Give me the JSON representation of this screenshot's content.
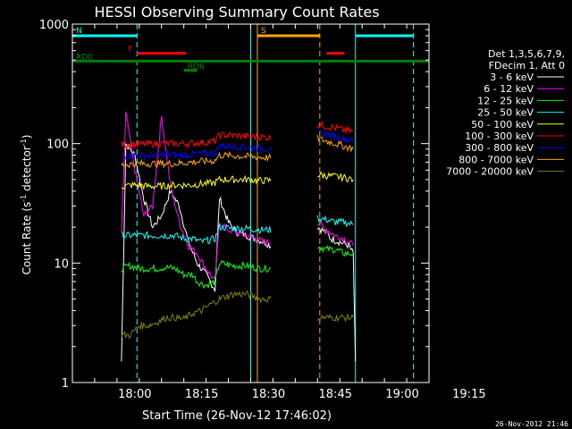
{
  "chart_data": {
    "type": "line",
    "title": "HESSI Observing Summary Count Rates",
    "xlabel": "Start Time (26-Nov-12 17:46:02)",
    "ylabel_main": "Count Rate (s",
    "ylabel_sup": "-1",
    "ylabel_mid": " detector",
    "ylabel_end": ")",
    "y_scale": "log",
    "ylim": [
      1,
      1000
    ],
    "xlim_minutes": [
      0,
      80
    ],
    "x_ticks": [
      {
        "minute": 14,
        "label": "18:00"
      },
      {
        "minute": 29,
        "label": "18:15"
      },
      {
        "minute": 44,
        "label": "18:30"
      },
      {
        "minute": 59,
        "label": "18:45"
      },
      {
        "minute": 74,
        "label": "19:00"
      },
      {
        "minute": 89,
        "label": "19:15"
      }
    ],
    "y_ticks": [
      {
        "value": 1,
        "label": "1"
      },
      {
        "value": 10,
        "label": "10"
      },
      {
        "value": 100,
        "label": "100"
      },
      {
        "value": 1000,
        "label": "1000"
      }
    ],
    "legend": {
      "placement": "right",
      "header": [
        "Det 1,3,5,6,7,9,",
        "FDecim 1, Att 0"
      ]
    },
    "series": [
      {
        "name": "3 - 6 keV",
        "color": "#ffffff",
        "values": [
          [
            11,
            1.5
          ],
          [
            12,
            100
          ],
          [
            14,
            80
          ],
          [
            16,
            35
          ],
          [
            18,
            20
          ],
          [
            20,
            25
          ],
          [
            22,
            40
          ],
          [
            24,
            30
          ],
          [
            26,
            15
          ],
          [
            28,
            10
          ],
          [
            30,
            8
          ],
          [
            32,
            6
          ],
          [
            33,
            35
          ],
          [
            35,
            22
          ],
          [
            37,
            18
          ],
          [
            39,
            17
          ],
          [
            41,
            16
          ],
          [
            43,
            15
          ],
          [
            44.5,
            14
          ],
          [
            55,
            20
          ],
          [
            57,
            18
          ],
          [
            58,
            16
          ],
          [
            60,
            15
          ],
          [
            62,
            14
          ],
          [
            63,
            12
          ],
          [
            63.5,
            1.5
          ]
        ]
      },
      {
        "name": "6 - 12 keV",
        "color": "#ff00ff",
        "values": [
          [
            11,
            17
          ],
          [
            12,
            180
          ],
          [
            14,
            60
          ],
          [
            16,
            25
          ],
          [
            18,
            30
          ],
          [
            20,
            170
          ],
          [
            22,
            45
          ],
          [
            24,
            22
          ],
          [
            26,
            14
          ],
          [
            28,
            12
          ],
          [
            30,
            9
          ],
          [
            32,
            7
          ],
          [
            33,
            22
          ],
          [
            35,
            19
          ],
          [
            37,
            18
          ],
          [
            39,
            17
          ],
          [
            41,
            16
          ],
          [
            43,
            15
          ],
          [
            44.5,
            15
          ],
          [
            55,
            22
          ],
          [
            57,
            19
          ],
          [
            59,
            17
          ],
          [
            61,
            16
          ],
          [
            63,
            14
          ]
        ]
      },
      {
        "name": "12 - 25 keV",
        "color": "#00ff00",
        "values": [
          [
            11,
            9
          ],
          [
            13,
            9.5
          ],
          [
            15,
            9
          ],
          [
            17,
            9
          ],
          [
            19,
            9
          ],
          [
            21,
            9.2
          ],
          [
            23,
            9
          ],
          [
            25,
            8
          ],
          [
            27,
            8
          ],
          [
            28,
            7
          ],
          [
            30,
            6.5
          ],
          [
            32,
            7
          ],
          [
            33,
            10
          ],
          [
            36,
            9.5
          ],
          [
            39,
            9.5
          ],
          [
            42,
            9
          ],
          [
            44.5,
            9
          ],
          [
            55,
            14
          ],
          [
            57,
            13
          ],
          [
            59,
            13
          ],
          [
            61,
            12
          ],
          [
            63,
            12
          ]
        ]
      },
      {
        "name": "25 - 50 keV",
        "color": "#00ffff",
        "values": [
          [
            11,
            17
          ],
          [
            14,
            17
          ],
          [
            17,
            17
          ],
          [
            20,
            17
          ],
          [
            23,
            17
          ],
          [
            25,
            16
          ],
          [
            27,
            16
          ],
          [
            29,
            15
          ],
          [
            32,
            16
          ],
          [
            33,
            20
          ],
          [
            36,
            19.5
          ],
          [
            39,
            19.5
          ],
          [
            42,
            19
          ],
          [
            44.5,
            19
          ],
          [
            55,
            24
          ],
          [
            57,
            23
          ],
          [
            59,
            22
          ],
          [
            61,
            22
          ],
          [
            63,
            21
          ]
        ]
      },
      {
        "name": "50 - 100 keV",
        "color": "#ffff00",
        "values": [
          [
            11,
            44
          ],
          [
            14,
            45
          ],
          [
            17,
            44
          ],
          [
            20,
            44
          ],
          [
            23,
            45
          ],
          [
            25,
            45
          ],
          [
            27,
            45
          ],
          [
            29,
            46
          ],
          [
            32,
            47
          ],
          [
            33,
            50
          ],
          [
            36,
            50
          ],
          [
            39,
            50
          ],
          [
            42,
            49
          ],
          [
            44.5,
            49
          ],
          [
            55,
            55
          ],
          [
            57,
            54
          ],
          [
            59,
            53
          ],
          [
            61,
            52
          ],
          [
            63,
            50
          ]
        ]
      },
      {
        "name": "100 - 300 keV",
        "color": "#ff0000",
        "values": [
          [
            11,
            98
          ],
          [
            14,
            99
          ],
          [
            17,
            99
          ],
          [
            20,
            100
          ],
          [
            23,
            100
          ],
          [
            25,
            100
          ],
          [
            27,
            101
          ],
          [
            29,
            102
          ],
          [
            32,
            105
          ],
          [
            33,
            118
          ],
          [
            36,
            117
          ],
          [
            39,
            115
          ],
          [
            42,
            114
          ],
          [
            44.5,
            112
          ],
          [
            55,
            145
          ],
          [
            57,
            140
          ],
          [
            59,
            135
          ],
          [
            61,
            130
          ],
          [
            63,
            127
          ]
        ]
      },
      {
        "name": "300 - 800 keV",
        "color": "#0000ff",
        "values": [
          [
            11,
            78
          ],
          [
            14,
            80
          ],
          [
            17,
            79
          ],
          [
            20,
            80
          ],
          [
            23,
            80
          ],
          [
            25,
            80
          ],
          [
            27,
            81
          ],
          [
            29,
            82
          ],
          [
            32,
            84
          ],
          [
            33,
            96
          ],
          [
            36,
            95
          ],
          [
            39,
            93
          ],
          [
            42,
            92
          ],
          [
            44.5,
            90
          ],
          [
            55,
            125
          ],
          [
            57,
            120
          ],
          [
            59,
            115
          ],
          [
            61,
            110
          ],
          [
            63,
            105
          ]
        ]
      },
      {
        "name": "800 - 7000 keV",
        "color": "#ffa500",
        "values": [
          [
            11,
            66
          ],
          [
            14,
            68
          ],
          [
            17,
            68
          ],
          [
            20,
            68
          ],
          [
            23,
            68
          ],
          [
            25,
            69
          ],
          [
            27,
            70
          ],
          [
            29,
            71
          ],
          [
            32,
            72
          ],
          [
            33,
            80
          ],
          [
            36,
            79
          ],
          [
            39,
            78
          ],
          [
            42,
            77
          ],
          [
            44.5,
            76
          ],
          [
            55,
            110
          ],
          [
            57,
            105
          ],
          [
            59,
            100
          ],
          [
            61,
            95
          ],
          [
            63,
            90
          ]
        ]
      },
      {
        "name": "7000 - 20000 keV",
        "color": "#808000",
        "values": [
          [
            11,
            2.5
          ],
          [
            13,
            2.5
          ],
          [
            15,
            3.0
          ],
          [
            17,
            3.0
          ],
          [
            19,
            3.2
          ],
          [
            21,
            3.5
          ],
          [
            23,
            3.5
          ],
          [
            25,
            3.4
          ],
          [
            27,
            3.8
          ],
          [
            29,
            4.0
          ],
          [
            31,
            4.5
          ],
          [
            33,
            5.0
          ],
          [
            36,
            5.5
          ],
          [
            39,
            5.5
          ],
          [
            42,
            5.0
          ],
          [
            44.5,
            5.0
          ],
          [
            55,
            3.5
          ],
          [
            57,
            3.5
          ],
          [
            59,
            3.5
          ],
          [
            61,
            3.5
          ],
          [
            63,
            3.5
          ]
        ]
      }
    ],
    "vertical_lines": [
      {
        "minute": 0,
        "color": "#00ffff",
        "style": "solid"
      },
      {
        "minute": 14.5,
        "color": "#00ffff",
        "style": "dashed"
      },
      {
        "minute": 40,
        "color": "#00ffff",
        "style": "solid"
      },
      {
        "minute": 41.5,
        "color": "#ffa500",
        "style": "solid"
      },
      {
        "minute": 55.5,
        "color": "#ffa500",
        "style": "dashed"
      },
      {
        "minute": 63.5,
        "color": "#00ffff",
        "style": "solid"
      },
      {
        "minute": 76.5,
        "color": "#00ffff",
        "style": "dashed"
      }
    ],
    "flag_bars": [
      {
        "label": "N",
        "color": "#00ffff",
        "value": 800,
        "segments": [
          [
            0,
            14.5
          ],
          [
            63.5,
            76.5
          ]
        ]
      },
      {
        "label": "S",
        "color": "#ffa500",
        "value": 800,
        "segments": [
          [
            41.5,
            55.5
          ]
        ]
      },
      {
        "label": "F",
        "color": "#ff0000",
        "value": 570,
        "segments": [
          [
            14.5,
            25.5
          ],
          [
            57,
            61
          ]
        ]
      },
      {
        "label": "RD0",
        "color": "#008000",
        "value": 490,
        "segments": [
          [
            0,
            80
          ]
        ]
      },
      {
        "label": "RD6",
        "color": "#008000",
        "value": 410,
        "segments": [
          [
            25,
            28
          ]
        ]
      }
    ]
  },
  "footer_timestamp": "26-Nov-2012 21:46"
}
